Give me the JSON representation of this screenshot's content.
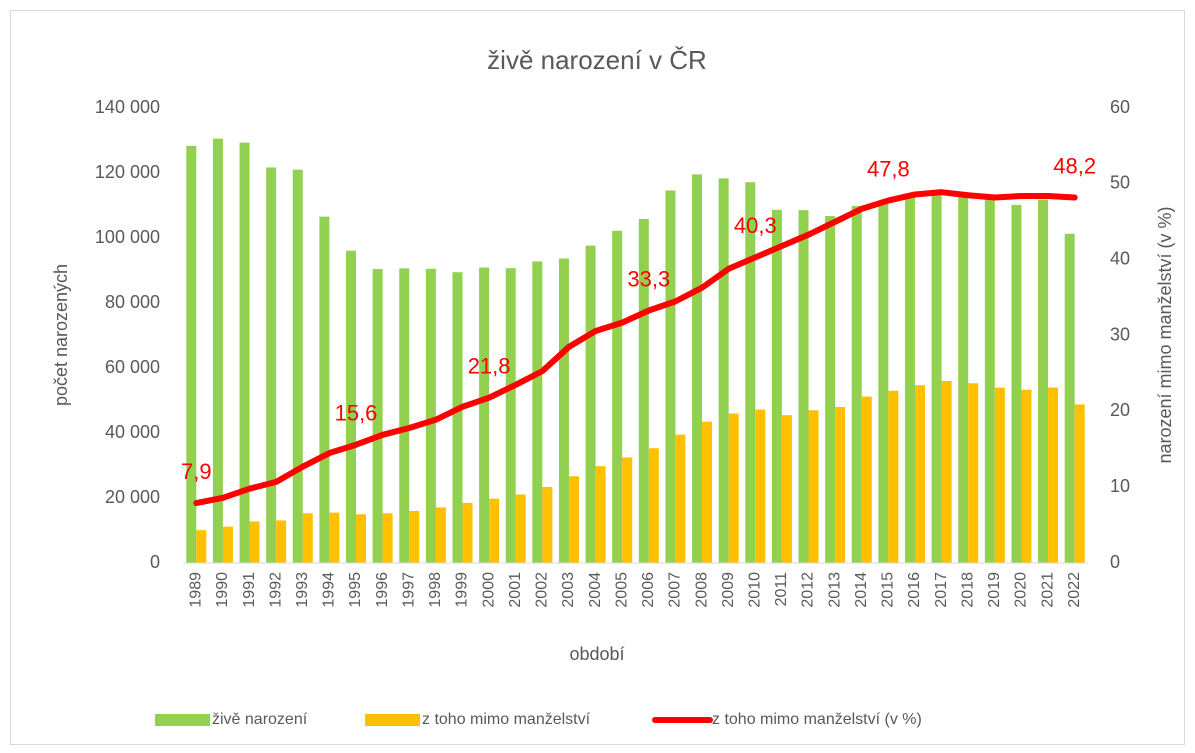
{
  "chart_data": {
    "type": "bar_line",
    "title": "živě narození v ČR",
    "x_label": "období",
    "y_label": "počet narozených",
    "y2_label": "narození mimo manželství (v %)",
    "categories": [
      "1989",
      "1990",
      "1991",
      "1992",
      "1993",
      "1994",
      "1995",
      "1996",
      "1997",
      "1998",
      "1999",
      "2000",
      "2001",
      "2002",
      "2003",
      "2004",
      "2005",
      "2006",
      "2007",
      "2008",
      "2009",
      "2010",
      "2011",
      "2012",
      "2013",
      "2014",
      "2015",
      "2016",
      "2017",
      "2018",
      "2019",
      "2020",
      "2021",
      "2022"
    ],
    "series": [
      {
        "name": "živě narození",
        "type": "bar",
        "color": "#92D050",
        "values": [
          128356,
          130564,
          129354,
          121705,
          121025,
          106579,
          96097,
          90446,
          90657,
          90535,
          89471,
          90910,
          90715,
          92786,
          93685,
          97664,
          102211,
          105831,
          114632,
          119570,
          118348,
          117153,
          108673,
          108576,
          106751,
          109860,
          110764,
          112663,
          114405,
          114036,
          112231,
          110200,
          111793,
          101299
        ]
      },
      {
        "name": "z toho mimo manželství",
        "type": "bar",
        "color": "#FFC000",
        "values": [
          10100,
          11200,
          12800,
          13100,
          15300,
          15500,
          15000,
          15300,
          16000,
          17100,
          18500,
          19800,
          21100,
          23400,
          26700,
          29800,
          32500,
          35300,
          39500,
          43500,
          46000,
          47200,
          45500,
          47000,
          48000,
          51200,
          53000,
          54700,
          56000,
          55300,
          54000,
          53300,
          54000,
          48800
        ]
      },
      {
        "name": "z toho mimo manželství (v %)",
        "type": "line",
        "axis": "y2",
        "color": "#FF0000",
        "values": [
          7.9,
          8.6,
          9.8,
          10.7,
          12.7,
          14.5,
          15.6,
          16.9,
          17.8,
          18.9,
          20.6,
          21.8,
          23.5,
          25.3,
          28.5,
          30.6,
          31.7,
          33.3,
          34.5,
          36.3,
          38.8,
          40.3,
          41.8,
          43.3,
          45.0,
          46.7,
          47.8,
          48.6,
          48.9,
          48.5,
          48.2,
          48.4,
          48.4,
          48.2
        ],
        "value_labels": [
          "7,9",
          null,
          null,
          null,
          null,
          null,
          "15,6",
          null,
          null,
          null,
          null,
          "21,8",
          null,
          null,
          null,
          null,
          null,
          "33,3",
          null,
          null,
          null,
          "40,3",
          null,
          null,
          null,
          null,
          "47,8",
          null,
          null,
          null,
          null,
          null,
          null,
          "48,2"
        ]
      }
    ],
    "ylim": [
      0,
      140000
    ],
    "yticks": [
      0,
      {
        "value": 20000,
        "label": "20 000"
      },
      {
        "value": 40000,
        "label": "40 000"
      },
      {
        "value": 60000,
        "label": "60 000"
      },
      {
        "value": 80000,
        "label": "80 000"
      },
      {
        "value": 100000,
        "label": "100 000"
      },
      {
        "value": 120000,
        "label": "120 000"
      },
      {
        "value": 140000,
        "label": "140 000"
      }
    ],
    "y2lim": [
      0,
      60
    ],
    "y2ticks": [
      0,
      10,
      20,
      30,
      40,
      50,
      60
    ],
    "grid": false,
    "legend": "bottom"
  }
}
